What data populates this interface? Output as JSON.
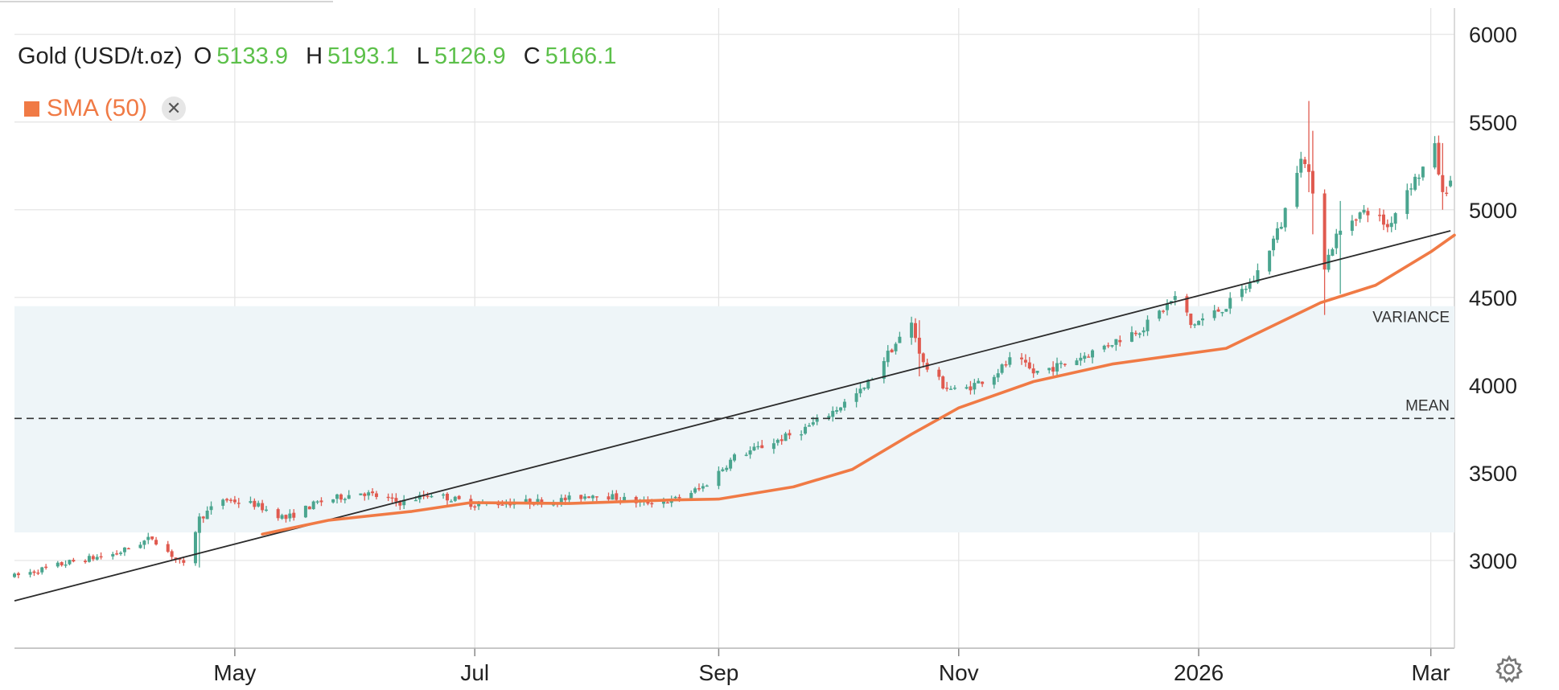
{
  "header": {
    "symbol": "Gold (USD/t.oz)",
    "o_label": "O",
    "o_value": "5133.9",
    "h_label": "H",
    "h_value": "5193.1",
    "l_label": "L",
    "l_value": "5126.9",
    "c_label": "C",
    "c_value": "5166.1"
  },
  "legend": {
    "sma_label": "SMA (50)",
    "sma_color": "#f07a45",
    "close_icon": "close-icon"
  },
  "settings_icon": "gear-icon",
  "colors": {
    "up": "#4aa58f",
    "down": "#e05a4f",
    "band": "#eef5f8",
    "sma": "#f07a45"
  },
  "chart_data": {
    "type": "candlestick",
    "x_tick_labels": [
      "May",
      "Jul",
      "Sep",
      "Nov",
      "2026",
      "Mar"
    ],
    "x_ticks": [
      "2025-05-01",
      "2025-07-01",
      "2025-09-01",
      "2025-11-01",
      "2026-01-01",
      "2026-03-01"
    ],
    "x_range": [
      "2025-03-06",
      "2026-03-07"
    ],
    "y_ticks": [
      3000,
      3500,
      4000,
      4500,
      5000,
      5500,
      6000
    ],
    "ylim": [
      2500,
      6150
    ],
    "grid": true,
    "last_ohlc": {
      "open": 5133.9,
      "high": 5193.1,
      "low": 5126.9,
      "close": 5166.1
    },
    "sma_period": 50,
    "price_path": [
      [
        "2025-03-06",
        2910
      ],
      [
        "2025-03-20",
        2990
      ],
      [
        "2025-04-01",
        3040
      ],
      [
        "2025-04-10",
        3130
      ],
      [
        "2025-04-16",
        3010
      ],
      [
        "2025-04-18",
        2970
      ],
      [
        "2025-04-22",
        3240
      ],
      [
        "2025-04-28",
        3350
      ],
      [
        "2025-05-06",
        3320
      ],
      [
        "2025-05-14",
        3240
      ],
      [
        "2025-05-22",
        3330
      ],
      [
        "2025-06-02",
        3390
      ],
      [
        "2025-06-12",
        3330
      ],
      [
        "2025-06-20",
        3380
      ],
      [
        "2025-07-01",
        3320
      ],
      [
        "2025-07-10",
        3330
      ],
      [
        "2025-07-22",
        3340
      ],
      [
        "2025-08-01",
        3380
      ],
      [
        "2025-08-12",
        3330
      ],
      [
        "2025-08-20",
        3340
      ],
      [
        "2025-08-28",
        3420
      ],
      [
        "2025-09-05",
        3590
      ],
      [
        "2025-09-12",
        3650
      ],
      [
        "2025-09-22",
        3740
      ],
      [
        "2025-09-30",
        3850
      ],
      [
        "2025-10-08",
        3980
      ],
      [
        "2025-10-14",
        4180
      ],
      [
        "2025-10-20",
        4350
      ],
      [
        "2025-10-23",
        4120
      ],
      [
        "2025-10-28",
        4000
      ],
      [
        "2025-11-01",
        3960
      ],
      [
        "2025-11-10",
        4060
      ],
      [
        "2025-11-15",
        4160
      ],
      [
        "2025-11-20",
        4070
      ],
      [
        "2025-11-28",
        4120
      ],
      [
        "2025-12-06",
        4200
      ],
      [
        "2025-12-18",
        4330
      ],
      [
        "2025-12-27",
        4520
      ],
      [
        "2025-12-30",
        4340
      ],
      [
        "2026-01-08",
        4450
      ],
      [
        "2026-01-15",
        4600
      ],
      [
        "2026-01-22",
        4920
      ],
      [
        "2026-01-27",
        5320
      ],
      [
        "2026-01-30",
        5120
      ],
      [
        "2026-02-02",
        4680
      ],
      [
        "2026-02-05",
        4850
      ],
      [
        "2026-02-10",
        4970
      ],
      [
        "2026-02-14",
        5000
      ],
      [
        "2026-02-18",
        4900
      ],
      [
        "2026-02-23",
        5120
      ],
      [
        "2026-02-26",
        5200
      ],
      [
        "2026-03-02",
        5350
      ],
      [
        "2026-03-04",
        5080
      ],
      [
        "2026-03-06",
        5166
      ]
    ],
    "sma_line": [
      [
        "2025-05-08",
        3150
      ],
      [
        "2025-05-25",
        3230
      ],
      [
        "2025-06-15",
        3280
      ],
      [
        "2025-06-30",
        3330
      ],
      [
        "2025-07-25",
        3325
      ],
      [
        "2025-08-20",
        3345
      ],
      [
        "2025-09-01",
        3350
      ],
      [
        "2025-09-20",
        3420
      ],
      [
        "2025-10-05",
        3520
      ],
      [
        "2025-10-20",
        3720
      ],
      [
        "2025-11-01",
        3870
      ],
      [
        "2025-11-20",
        4020
      ],
      [
        "2025-12-10",
        4120
      ],
      [
        "2025-12-26",
        4170
      ],
      [
        "2026-01-08",
        4210
      ],
      [
        "2026-01-20",
        4340
      ],
      [
        "2026-02-01",
        4470
      ],
      [
        "2026-02-15",
        4570
      ],
      [
        "2026-03-01",
        4760
      ],
      [
        "2026-03-07",
        4855
      ]
    ],
    "trendline": {
      "start": [
        "2025-03-06",
        2770
      ],
      "end": [
        "2026-03-06",
        4880
      ]
    },
    "mean": {
      "label": "MEAN",
      "value": 3810
    },
    "variance_band": {
      "label": "VARIANCE",
      "low": 3160,
      "high": 4450
    }
  }
}
